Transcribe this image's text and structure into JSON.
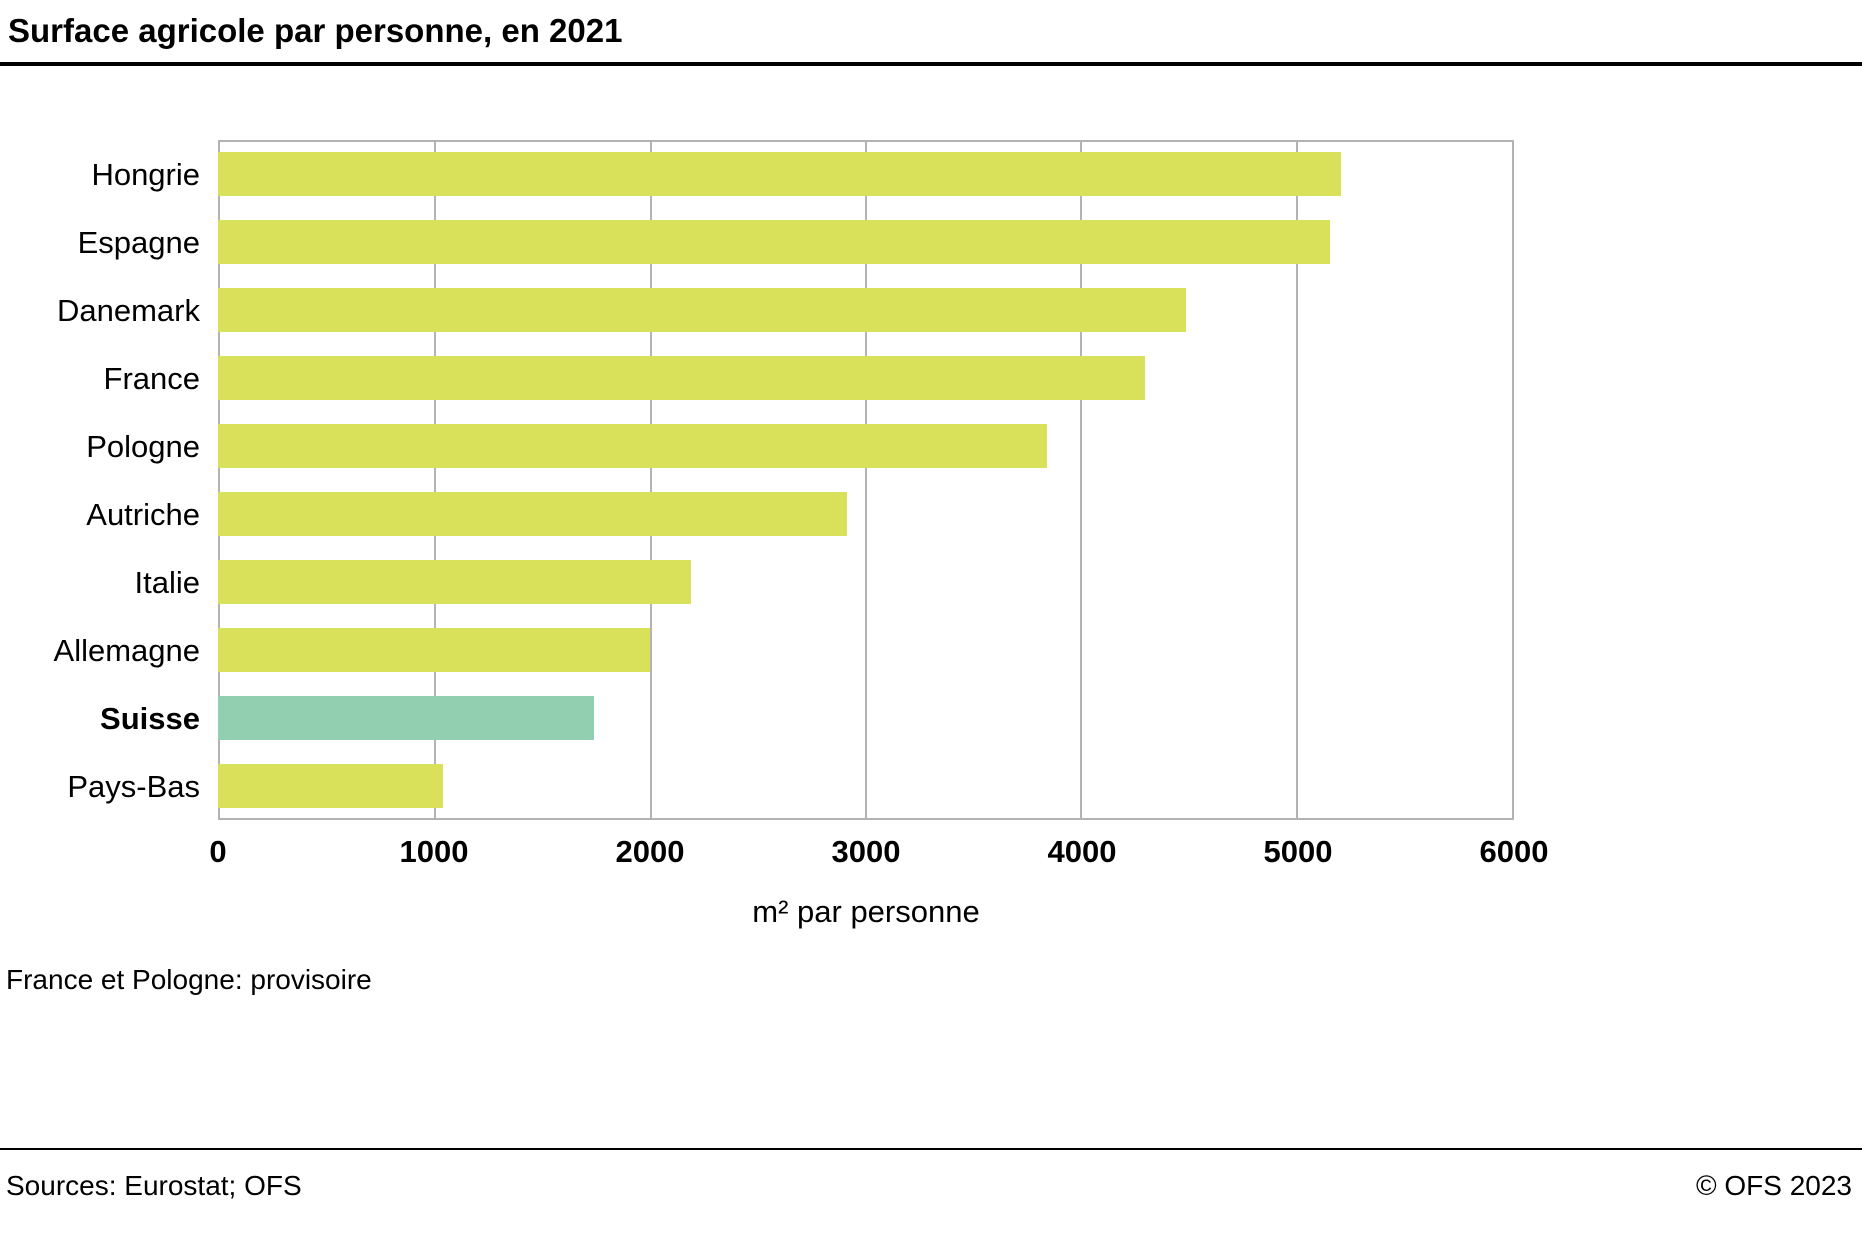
{
  "title": "Surface agricole par personne, en 2021",
  "chart_data": {
    "type": "bar",
    "orientation": "horizontal",
    "title": "Surface agricole par personne, en 2021",
    "categories": [
      "Hongrie",
      "Espagne",
      "Danemark",
      "France",
      "Pologne",
      "Autriche",
      "Italie",
      "Allemagne",
      "Suisse",
      "Pays-Bas"
    ],
    "values": [
      5200,
      5150,
      4480,
      4290,
      3840,
      2910,
      2190,
      2000,
      1740,
      1040
    ],
    "highlight_category": "Suisse",
    "xlabel": "m² par personne",
    "ylabel": "",
    "xlim": [
      0,
      6000
    ],
    "xticks": [
      0,
      1000,
      2000,
      3000,
      4000,
      5000,
      6000
    ],
    "grid": true,
    "legend": "none",
    "bar_color": "#d9e05a",
    "highlight_color": "#92cfb0",
    "grid_color": "#b3b3b3"
  },
  "footnote": "France et Pologne: provisoire",
  "footer": {
    "sources": "Sources: Eurostat; OFS",
    "copyright": "© OFS 2023"
  }
}
